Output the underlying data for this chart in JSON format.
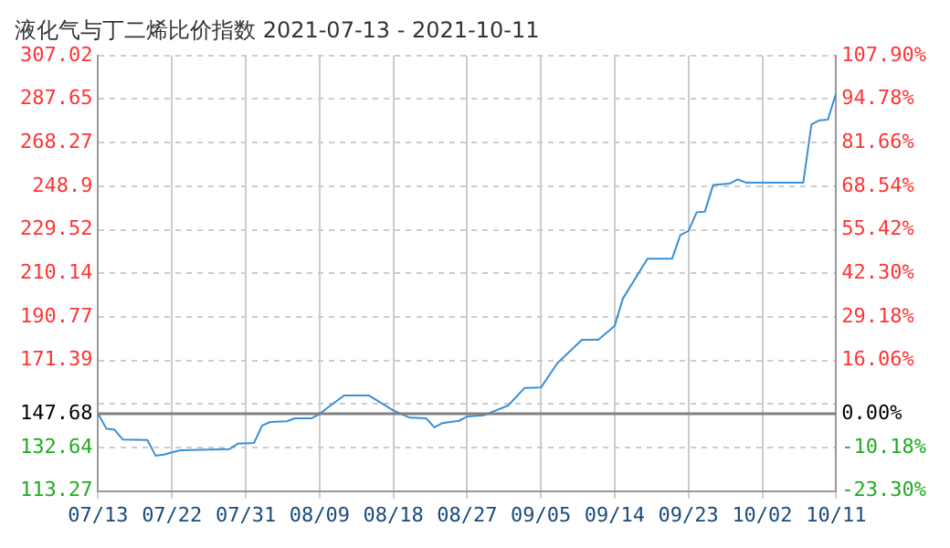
{
  "chart_data": {
    "type": "line",
    "title": "液化气与丁二烯比价指数 2021-07-13 - 2021-10-11",
    "x": [
      "2021-07-13",
      "2021-07-14",
      "2021-07-15",
      "2021-07-16",
      "2021-07-19",
      "2021-07-20",
      "2021-07-21",
      "2021-07-23",
      "2021-07-29",
      "2021-07-30",
      "2021-08-01",
      "2021-08-02",
      "2021-08-03",
      "2021-08-05",
      "2021-08-06",
      "2021-08-08",
      "2021-08-09",
      "2021-08-10",
      "2021-08-12",
      "2021-08-15",
      "2021-08-18",
      "2021-08-20",
      "2021-08-22",
      "2021-08-23",
      "2021-08-24",
      "2021-08-26",
      "2021-08-27",
      "2021-08-29",
      "2021-09-01",
      "2021-09-03",
      "2021-09-05",
      "2021-09-07",
      "2021-09-10",
      "2021-09-12",
      "2021-09-14",
      "2021-09-15",
      "2021-09-18",
      "2021-09-21",
      "2021-09-22",
      "2021-09-23",
      "2021-09-24",
      "2021-09-25",
      "2021-09-26",
      "2021-09-28",
      "2021-09-29",
      "2021-09-30",
      "2021-10-07",
      "2021-10-08",
      "2021-10-09",
      "2021-10-10",
      "2021-10-11"
    ],
    "series": [
      {
        "color": "#3a8fd6",
        "values": [
          147.68,
          141.0,
          140.5,
          136.2,
          136.0,
          129.0,
          129.5,
          131.4,
          131.9,
          134.3,
          134.6,
          142.4,
          144.0,
          144.3,
          145.6,
          145.6,
          147.5,
          150.4,
          155.8,
          155.8,
          149.1,
          145.9,
          145.6,
          141.6,
          143.5,
          144.5,
          146.4,
          146.9,
          151.3,
          159.1,
          159.3,
          170.1,
          180.6,
          180.6,
          186.8,
          198.9,
          216.6,
          216.6,
          227.1,
          229.0,
          237.3,
          237.6,
          249.4,
          250.0,
          251.9,
          250.5,
          250.5,
          276.4,
          278.2,
          278.5,
          290.3
        ]
      }
    ],
    "xlim": [
      "2021-07-13",
      "2021-10-11"
    ],
    "xticks": [
      {
        "value": "2021-07-13",
        "label": "07/13"
      },
      {
        "value": "2021-07-22",
        "label": "07/22"
      },
      {
        "value": "2021-07-31",
        "label": "07/31"
      },
      {
        "value": "2021-08-09",
        "label": "08/09"
      },
      {
        "value": "2021-08-18",
        "label": "08/18"
      },
      {
        "value": "2021-08-27",
        "label": "08/27"
      },
      {
        "value": "2021-09-05",
        "label": "09/05"
      },
      {
        "value": "2021-09-14",
        "label": "09/14"
      },
      {
        "value": "2021-09-23",
        "label": "09/23"
      },
      {
        "value": "2021-10-02",
        "label": "10/02"
      },
      {
        "value": "2021-10-11",
        "label": "10/11"
      }
    ],
    "ylim": [
      113.27,
      307.02
    ],
    "yticks": [
      113.27,
      132.64,
      147.68,
      {
        "value": 152.02,
        "label": null
      },
      171.39,
      190.77,
      210.14,
      229.52,
      248.9,
      268.27,
      287.65,
      307.02
    ],
    "y2lim": [
      -23.3,
      107.9
    ],
    "y2ticks": [
      {
        "value": -23.3,
        "label": "-23.30%"
      },
      {
        "value": -10.18,
        "label": "-10.18%"
      },
      {
        "value": 0,
        "label": "0.00%"
      },
      {
        "value": 16.06,
        "label": "16.06%"
      },
      {
        "value": 29.18,
        "label": "29.18%"
      },
      {
        "value": 42.3,
        "label": "42.30%"
      },
      {
        "value": 55.42,
        "label": "55.42%"
      },
      {
        "value": 68.54,
        "label": "68.54%"
      },
      {
        "value": 81.66,
        "label": "81.66%"
      },
      {
        "value": 94.78,
        "label": "94.78%"
      },
      {
        "value": 107.9,
        "label": "107.90%"
      }
    ],
    "ref_lines": [
      {
        "axis": "y",
        "value": 147.68,
        "color": "#808080"
      }
    ],
    "grid": true,
    "legend": false,
    "marker": "none",
    "line_style": "solid"
  }
}
